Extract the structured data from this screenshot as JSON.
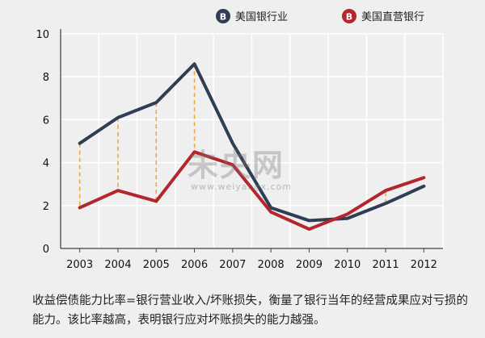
{
  "chart_data": {
    "type": "line",
    "x": [
      "2003",
      "2004",
      "2005",
      "2006",
      "2007",
      "2008",
      "2009",
      "2010",
      "2011",
      "2012"
    ],
    "ylim": [
      0,
      10
    ],
    "yticks": [
      0,
      2,
      4,
      6,
      8,
      10
    ],
    "grid": true,
    "legend_position": "top",
    "series": [
      {
        "name": "美国银行业",
        "color": "#2f3e55",
        "values": [
          4.9,
          6.1,
          6.8,
          8.6,
          4.9,
          1.9,
          1.3,
          1.4,
          2.1,
          2.9
        ]
      },
      {
        "name": "美国直营银行",
        "color": "#b3262d",
        "values": [
          1.9,
          2.7,
          2.2,
          4.5,
          3.9,
          1.7,
          0.9,
          1.6,
          2.7,
          3.3
        ]
      }
    ],
    "gap_connectors": {
      "color": "#f0a63a",
      "indices": [
        0,
        1,
        2,
        3,
        8
      ]
    }
  },
  "legend": [
    {
      "label": "美国银行业",
      "icon_text": "B",
      "color": "#2f3e55"
    },
    {
      "label": "美国直营银行",
      "icon_text": "B",
      "color": "#b3262d"
    }
  ],
  "watermark": {
    "main": "未央网",
    "sub": "www.weiyangx.com"
  },
  "caption": "收益偿债能力比率=银行营业收入/坏账损失，衡量了银行当年的经营成果应对亏损的能力。该比率越高，表明银行应对坏账损失的能力越强。"
}
